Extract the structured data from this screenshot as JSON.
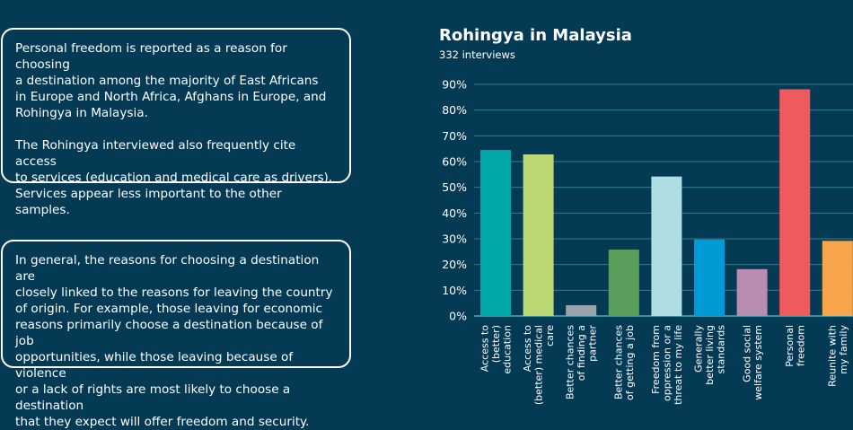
{
  "text_cards": {
    "card1": {
      "paragraph1": "Personal freedom is reported as a reason for choosing\na destination among the majority of East Africans\nin Europe and North Africa, Afghans in Europe, and\nRohingya in Malaysia.",
      "paragraph2": "The Rohingya interviewed also frequently cite access\nto services (education and medical care as drivers).\nServices appear less important to the other samples."
    },
    "card2": {
      "paragraph1": "In general, the reasons for choosing a destination are\nclosely linked to the reasons for leaving the country\nof origin. For example, those leaving for economic\nreasons primarily choose a destination because of job\nopportunities, while those leaving because of violence\nor a lack of rights are most likely to choose a destination\nthat they expect will offer freedom and security."
    }
  },
  "chart_data": {
    "type": "bar",
    "title": "Rohingya in Malaysia",
    "subtitle": "332 interviews",
    "ylim": [
      0,
      90
    ],
    "yticks": [
      "0%",
      "10%",
      "20%",
      "30%",
      "40%",
      "50%",
      "60%",
      "70%",
      "80%",
      "90%"
    ],
    "grid": true,
    "categories": [
      [
        "Access to",
        "(better)",
        "education"
      ],
      [
        "Access to",
        "(better) medical",
        "care"
      ],
      [
        "Better chances",
        "of finding a",
        "partner"
      ],
      [
        "Better chances",
        "of getting a job"
      ],
      [
        "Freedom from",
        "oppression or a",
        "threat to my life"
      ],
      [
        "Generally",
        "better living",
        "standards"
      ],
      [
        "Good social",
        "welfare system"
      ],
      [
        "Personal",
        "freedom"
      ],
      [
        "Reunite with",
        "my family"
      ]
    ],
    "values": [
      64.5,
      62.8,
      4.2,
      25.8,
      54.2,
      29.7,
      18.2,
      88.1,
      29.2
    ],
    "colors": [
      "#00a9a8",
      "#bcd875",
      "#9aa3aa",
      "#5b9e5c",
      "#afdde4",
      "#009bd6",
      "#b98db1",
      "#ef5a5d",
      "#f7a54a"
    ],
    "grid_color": "#2f7d8c",
    "axis_color": "#48b0be"
  }
}
